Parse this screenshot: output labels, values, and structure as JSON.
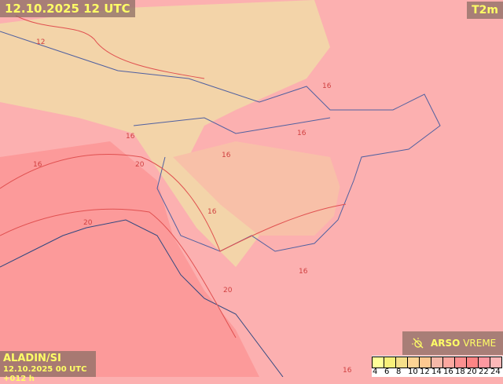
{
  "header": {
    "title": "12.10.2025 12 UTC",
    "parameter": "T2m"
  },
  "footer": {
    "model": "ALADIN/SI",
    "run": "12.10.2025 00 UTC +012 h"
  },
  "brand": {
    "name_bold": "ARSO",
    "name_light": "VREME",
    "icon": "sun-slash-icon"
  },
  "legend": {
    "ticks": [
      "4",
      "6",
      "8",
      "10",
      "12",
      "14",
      "16",
      "18",
      "20",
      "22",
      "24"
    ],
    "colors": [
      "#ffff99",
      "#f8f07a",
      "#f5e08a",
      "#fcd494",
      "#fcc890",
      "#f5b8a8",
      "#fca8a0",
      "#fc9090",
      "#fc8484",
      "#fc98a0",
      "#fcb8b8"
    ]
  },
  "map": {
    "contour_labels": [
      "12",
      "16",
      "16",
      "16",
      "16",
      "20",
      "20",
      "16",
      "16",
      "16",
      "20",
      "16"
    ],
    "colors": {
      "sea": "#fc9a9a",
      "land": "#fcb0b0",
      "highland": "#f5dca0",
      "contour": "#e05050",
      "border": "#5060a0"
    }
  }
}
